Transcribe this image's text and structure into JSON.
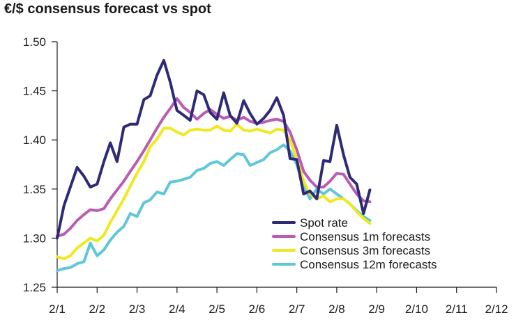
{
  "chart_data": {
    "type": "line",
    "title": "€/$ consensus forecast vs spot",
    "xlabel": "",
    "ylabel": "",
    "ylim": [
      1.25,
      1.5
    ],
    "yticks": [
      "1.25",
      "1.30",
      "1.35",
      "1.40",
      "1.45",
      "1.50"
    ],
    "xticks": [
      "2/1",
      "2/2",
      "2/3",
      "2/4",
      "2/5",
      "2/6",
      "2/7",
      "2/8",
      "2/9",
      "2/10",
      "2/11",
      "2/12"
    ],
    "xlim": [
      0,
      11
    ],
    "legend_position": "bottom-right",
    "series": [
      {
        "name": "Spot rate",
        "color": "#2e2a78",
        "x": [
          0,
          0.17,
          0.33,
          0.5,
          0.67,
          0.83,
          1.0,
          1.17,
          1.33,
          1.5,
          1.67,
          1.83,
          2.0,
          2.17,
          2.33,
          2.5,
          2.67,
          2.83,
          3.0,
          3.17,
          3.33,
          3.5,
          3.67,
          3.83,
          4.0,
          4.17,
          4.33,
          4.5,
          4.67,
          4.83,
          5.0,
          5.17,
          5.33,
          5.5,
          5.67,
          5.83,
          6.0,
          6.17,
          6.33,
          6.5,
          6.67,
          6.83,
          7.0,
          7.17,
          7.33,
          7.5,
          7.67,
          7.83,
          8.0,
          8.17,
          8.33,
          8.5,
          8.67,
          8.83,
          9.0,
          9.17,
          9.33,
          9.5,
          9.67,
          9.83,
          10.0,
          10.17,
          10.33,
          10.5,
          10.67,
          10.83,
          11.0
        ],
        "values": [
          1.3,
          1.333,
          1.352,
          1.372,
          1.363,
          1.352,
          1.355,
          1.378,
          1.397,
          1.378,
          1.413,
          1.416,
          1.416,
          1.441,
          1.445,
          1.466,
          1.481,
          1.459,
          1.43,
          1.425,
          1.42,
          1.45,
          1.446,
          1.428,
          1.421,
          1.448,
          1.425,
          1.417,
          1.44,
          1.427,
          1.416,
          1.422,
          1.43,
          1.443,
          1.425,
          1.381,
          1.38,
          1.345,
          1.348,
          1.34,
          1.379,
          1.378,
          1.415,
          1.385,
          1.362,
          1.355,
          1.325,
          1.349,
          null,
          null,
          null,
          null,
          null,
          null,
          null,
          null,
          null,
          null,
          null,
          null,
          null,
          null,
          null,
          null,
          null,
          null,
          null
        ]
      },
      {
        "name": "Consensus 1m forecasts",
        "color": "#b95cb3",
        "x": [
          0,
          0.17,
          0.33,
          0.5,
          0.67,
          0.83,
          1.0,
          1.17,
          1.33,
          1.5,
          1.67,
          1.83,
          2.0,
          2.17,
          2.33,
          2.5,
          2.67,
          2.83,
          3.0,
          3.17,
          3.33,
          3.5,
          3.67,
          3.83,
          4.0,
          4.17,
          4.33,
          4.5,
          4.67,
          4.83,
          5.0,
          5.17,
          5.33,
          5.5,
          5.67,
          5.83,
          6.0,
          6.17,
          6.33,
          6.5,
          6.67,
          6.83,
          7.0,
          7.17,
          7.33,
          7.5,
          7.67,
          7.83
        ],
        "values": [
          1.302,
          1.304,
          1.31,
          1.318,
          1.324,
          1.329,
          1.328,
          1.33,
          1.34,
          1.349,
          1.358,
          1.368,
          1.378,
          1.389,
          1.4,
          1.412,
          1.423,
          1.432,
          1.442,
          1.433,
          1.428,
          1.421,
          1.427,
          1.431,
          1.426,
          1.422,
          1.424,
          1.42,
          1.423,
          1.419,
          1.417,
          1.418,
          1.42,
          1.421,
          1.419,
          1.408,
          1.39,
          1.368,
          1.359,
          1.352,
          1.352,
          1.358,
          1.366,
          1.365,
          1.355,
          1.345,
          1.338,
          1.337
        ]
      },
      {
        "name": "Consensus 3m forecasts",
        "color": "#f0e820",
        "x": [
          0,
          0.17,
          0.33,
          0.5,
          0.67,
          0.83,
          1.0,
          1.17,
          1.33,
          1.5,
          1.67,
          1.83,
          2.0,
          2.17,
          2.33,
          2.5,
          2.67,
          2.83,
          3.0,
          3.17,
          3.33,
          3.5,
          3.67,
          3.83,
          4.0,
          4.17,
          4.33,
          4.5,
          4.67,
          4.83,
          5.0,
          5.17,
          5.33,
          5.5,
          5.67,
          5.83,
          6.0,
          6.17,
          6.33,
          6.5,
          6.67,
          6.83,
          7.0,
          7.17,
          7.33,
          7.5,
          7.67,
          7.83
        ],
        "values": [
          1.281,
          1.279,
          1.282,
          1.29,
          1.295,
          1.3,
          1.297,
          1.303,
          1.316,
          1.328,
          1.34,
          1.353,
          1.366,
          1.378,
          1.393,
          1.401,
          1.412,
          1.412,
          1.408,
          1.405,
          1.41,
          1.411,
          1.41,
          1.41,
          1.414,
          1.41,
          1.409,
          1.416,
          1.41,
          1.409,
          1.411,
          1.409,
          1.407,
          1.411,
          1.41,
          1.4,
          1.38,
          1.358,
          1.345,
          1.34,
          1.343,
          1.337,
          1.34,
          1.34,
          1.335,
          1.327,
          1.32,
          1.315
        ]
      },
      {
        "name": "Consensus 12m forecasts",
        "color": "#5fc7d9",
        "x": [
          0,
          0.17,
          0.33,
          0.5,
          0.67,
          0.83,
          1.0,
          1.17,
          1.33,
          1.5,
          1.67,
          1.83,
          2.0,
          2.17,
          2.33,
          2.5,
          2.67,
          2.83,
          3.0,
          3.17,
          3.33,
          3.5,
          3.67,
          3.83,
          4.0,
          4.17,
          4.33,
          4.5,
          4.67,
          4.83,
          5.0,
          5.17,
          5.33,
          5.5,
          5.67,
          5.83,
          6.0,
          6.17,
          6.33,
          6.5,
          6.67,
          6.83,
          7.0,
          7.17,
          7.33,
          7.5,
          7.67,
          7.83
        ],
        "values": [
          1.267,
          1.269,
          1.27,
          1.274,
          1.276,
          1.295,
          1.282,
          1.288,
          1.298,
          1.306,
          1.312,
          1.325,
          1.322,
          1.336,
          1.339,
          1.347,
          1.345,
          1.357,
          1.358,
          1.36,
          1.362,
          1.369,
          1.371,
          1.376,
          1.378,
          1.374,
          1.38,
          1.386,
          1.385,
          1.374,
          1.377,
          1.38,
          1.387,
          1.39,
          1.395,
          1.389,
          1.375,
          1.353,
          1.34,
          1.35,
          1.345,
          1.35,
          1.345,
          1.34,
          1.335,
          1.328,
          1.322,
          1.318
        ]
      }
    ]
  }
}
